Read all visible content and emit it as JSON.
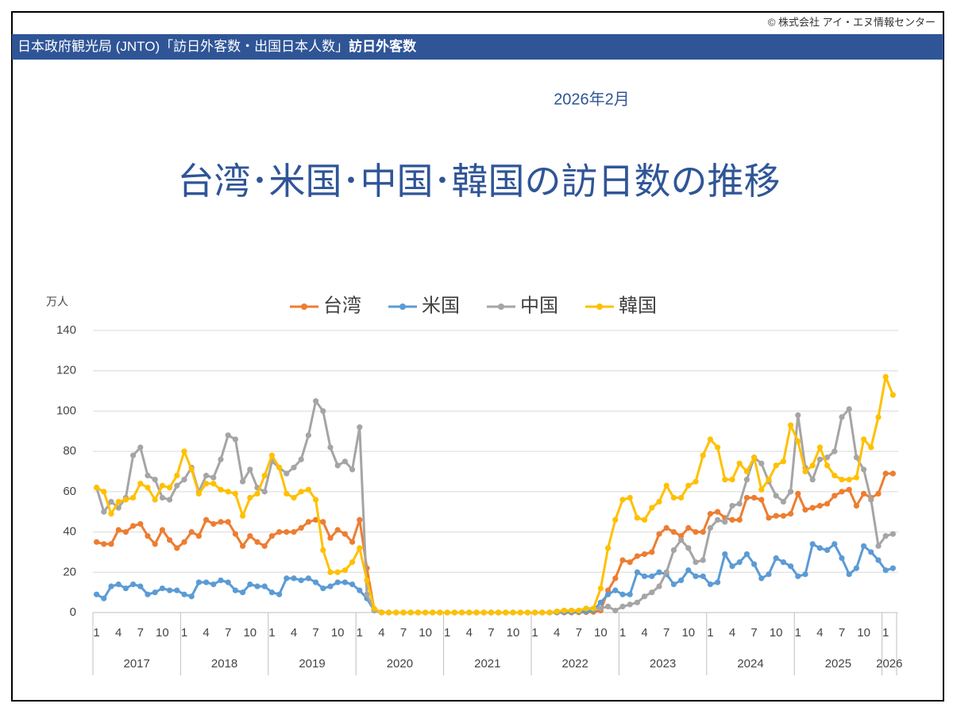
{
  "header": {
    "copyright": "© 株式会社 アイ・エヌ情報センター",
    "banner": "日本政府観光局 (JNTO)「訪日外客数・出国日本人数」",
    "banner_bold": "訪日外客数",
    "date": "2026年2月"
  },
  "chart_data": {
    "type": "line",
    "title": "台湾･米国･中国･韓国の訪日数の推移",
    "y_label": "万人",
    "categories": [
      1,
      null,
      null,
      4,
      null,
      null,
      7,
      null,
      null,
      10,
      null,
      null,
      1,
      null,
      null,
      4,
      null,
      null,
      7,
      null,
      null,
      10,
      null,
      null,
      1,
      null,
      null,
      4,
      null,
      null,
      7,
      null,
      null,
      10,
      null,
      null,
      1,
      null,
      null,
      4,
      null,
      null,
      7,
      null,
      null,
      10,
      null,
      null,
      1,
      null,
      null,
      4,
      null,
      null,
      7,
      null,
      null,
      10,
      null,
      null,
      1,
      null,
      null,
      4,
      null,
      null,
      7,
      null,
      null,
      10,
      null,
      null,
      1,
      null,
      null,
      4,
      null,
      null,
      7,
      null,
      null,
      10,
      null,
      null,
      1,
      null,
      null,
      4,
      null,
      null,
      7,
      null,
      null,
      10,
      null,
      null,
      1,
      null,
      null,
      4,
      null,
      null,
      7,
      null,
      null,
      10,
      null,
      null,
      1,
      null
    ],
    "years": [
      "2017",
      "2018",
      "2019",
      "2020",
      "2021",
      "2022",
      "2023",
      "2024",
      "2025",
      "2026"
    ],
    "ylim": [
      0,
      140
    ],
    "yticks": [
      0,
      20,
      40,
      60,
      80,
      100,
      120,
      140
    ],
    "grid": true,
    "legend": "top",
    "series": [
      {
        "name": "台湾",
        "color": "#ed7d31",
        "values": [
          35,
          34,
          34,
          41,
          40,
          43,
          44,
          38,
          34,
          41,
          36,
          32,
          35,
          40,
          38,
          46,
          44,
          45,
          45,
          39,
          33,
          38,
          35,
          33,
          38,
          40,
          40,
          40,
          42,
          45,
          46,
          45,
          37,
          41,
          39,
          35,
          46,
          22,
          1.5,
          0.1,
          0,
          0,
          0,
          0,
          0,
          0,
          0,
          0,
          0,
          0,
          0,
          0,
          0,
          0,
          0,
          0,
          0,
          0,
          0,
          0,
          0,
          0,
          0,
          0,
          0,
          0,
          0.1,
          0.2,
          0.3,
          1,
          11,
          17,
          26,
          25,
          28,
          29,
          30,
          39,
          42,
          40,
          38,
          42,
          40,
          40,
          49,
          50,
          47,
          46,
          46,
          57,
          57,
          56,
          47,
          48,
          48,
          49,
          59,
          51,
          52,
          53,
          54,
          58,
          60,
          61,
          53,
          59,
          57,
          59,
          69,
          69
        ]
      },
      {
        "name": "米国",
        "color": "#5b9bd5",
        "values": [
          9,
          7,
          13,
          14,
          12,
          14,
          13,
          9,
          10,
          12,
          11,
          11,
          9,
          8,
          15,
          15,
          14,
          16,
          15,
          11,
          10,
          14,
          13,
          13,
          10,
          9,
          17,
          17,
          16,
          17,
          15,
          12,
          13,
          15,
          15,
          14,
          11,
          7,
          1,
          0,
          0,
          0,
          0,
          0,
          0,
          0,
          0,
          0,
          0,
          0,
          0,
          0,
          0,
          0,
          0,
          0,
          0,
          0,
          0,
          0,
          0,
          0,
          0,
          0.1,
          0.2,
          0.3,
          0.5,
          0.5,
          1,
          5,
          9,
          11,
          9,
          9,
          20,
          18,
          18,
          20,
          19,
          14,
          16,
          21,
          18,
          18,
          14,
          15,
          29,
          23,
          25,
          29,
          24,
          17,
          19,
          27,
          25,
          23,
          18,
          19,
          34,
          32,
          31,
          34,
          27,
          19,
          22,
          33,
          30,
          26,
          21,
          22
        ]
      },
      {
        "name": "中国",
        "color": "#a5a5a5",
        "values": [
          62,
          50,
          55,
          52,
          57,
          78,
          82,
          68,
          66,
          57,
          56,
          63,
          66,
          72,
          60,
          68,
          67,
          76,
          88,
          86,
          65,
          71,
          62,
          60,
          75,
          72,
          69,
          72,
          76,
          88,
          105,
          100,
          82,
          73,
          75,
          71,
          92,
          9,
          1,
          0,
          0,
          0,
          0,
          0,
          0,
          0,
          0,
          0,
          0,
          0,
          0,
          0,
          0,
          0,
          0,
          0,
          0,
          0,
          0,
          0,
          0,
          0,
          0,
          0.5,
          1,
          1,
          1,
          2,
          2,
          2,
          3,
          1,
          3,
          4,
          5,
          8,
          10,
          13,
          20,
          31,
          36,
          32,
          25,
          26,
          42,
          46,
          45,
          53,
          54,
          66,
          77,
          74,
          65,
          58,
          55,
          60,
          98,
          72,
          66,
          76,
          77,
          80,
          97,
          101,
          77,
          71,
          56,
          33,
          38,
          39
        ]
      },
      {
        "name": "韓国",
        "color": "#ffc000",
        "values": [
          62,
          60,
          49,
          55,
          56,
          57,
          64,
          62,
          56,
          63,
          62,
          68,
          80,
          71,
          59,
          64,
          64,
          61,
          60,
          59,
          48,
          57,
          59,
          68,
          78,
          72,
          59,
          57,
          60,
          61,
          56,
          31,
          20,
          20,
          21,
          25,
          32,
          16,
          2,
          0,
          0,
          0,
          0,
          0,
          0,
          0,
          0,
          0,
          0,
          0,
          0,
          0,
          0,
          0,
          0,
          0,
          0,
          0,
          0,
          0,
          0,
          0,
          0,
          0.5,
          1,
          1,
          1,
          2,
          2,
          12,
          32,
          46,
          56,
          57,
          47,
          46,
          52,
          55,
          63,
          57,
          57,
          63,
          65,
          78,
          86,
          82,
          66,
          66,
          74,
          70,
          77,
          61,
          66,
          73,
          75,
          93,
          85,
          70,
          73,
          82,
          73,
          68,
          66,
          66,
          67,
          86,
          82,
          97,
          117,
          108
        ]
      }
    ]
  }
}
